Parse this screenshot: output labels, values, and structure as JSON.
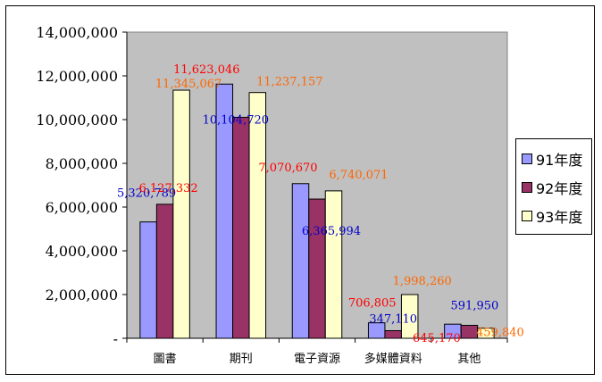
{
  "chart_data": {
    "type": "bar",
    "categories": [
      "圖書",
      "期刊",
      "電子資源",
      "多媒體資料",
      "其他"
    ],
    "series": [
      {
        "name": "91年度",
        "color": "#9999ff",
        "label_color": "#0000cc",
        "values": [
          5320789,
          11623046,
          7070670,
          706805,
          645170
        ]
      },
      {
        "name": "92年度",
        "color": "#993366",
        "label_color": "#ff0000",
        "values": [
          6127332,
          10104720,
          6365994,
          347110,
          591950
        ]
      },
      {
        "name": "93年度",
        "color": "#ffffcc",
        "label_color": "#ff6600",
        "values": [
          11345067,
          11237157,
          6740071,
          1998260,
          459840
        ]
      }
    ],
    "data_labels": [
      [
        "5,320,789",
        "6,127,332",
        "11,345,067"
      ],
      [
        "11,623,046",
        "10,104,720",
        "11,237,157"
      ],
      [
        "7,070,670",
        "6,365,994",
        "6,740,071"
      ],
      [
        "706,805",
        "347,110",
        "1,998,260"
      ],
      [
        "645,170",
        "591,950",
        "459,840"
      ]
    ],
    "data_label_colors": [
      [
        "#0000cc",
        "#ff0000",
        "#ff6600"
      ],
      [
        "#ff0000",
        "#0000cc",
        "#ff6600"
      ],
      [
        "#ff0000",
        "#0000cc",
        "#ff6600"
      ],
      [
        "#ff0000",
        "#0000cc",
        "#ff6600"
      ],
      [
        "#ff0000",
        "#0000cc",
        "#ff6600"
      ]
    ],
    "y_ticks": [
      0,
      2000000,
      4000000,
      6000000,
      8000000,
      10000000,
      12000000,
      14000000
    ],
    "y_tick_labels": [
      "-",
      "2,000,000",
      "4,000,000",
      "6,000,000",
      "8,000,000",
      "10,000,000",
      "12,000,000",
      "14,000,000"
    ],
    "ylim": [
      0,
      14000000
    ],
    "grid": false,
    "plot_background": "#c0c0c0",
    "legend_position": "right"
  }
}
